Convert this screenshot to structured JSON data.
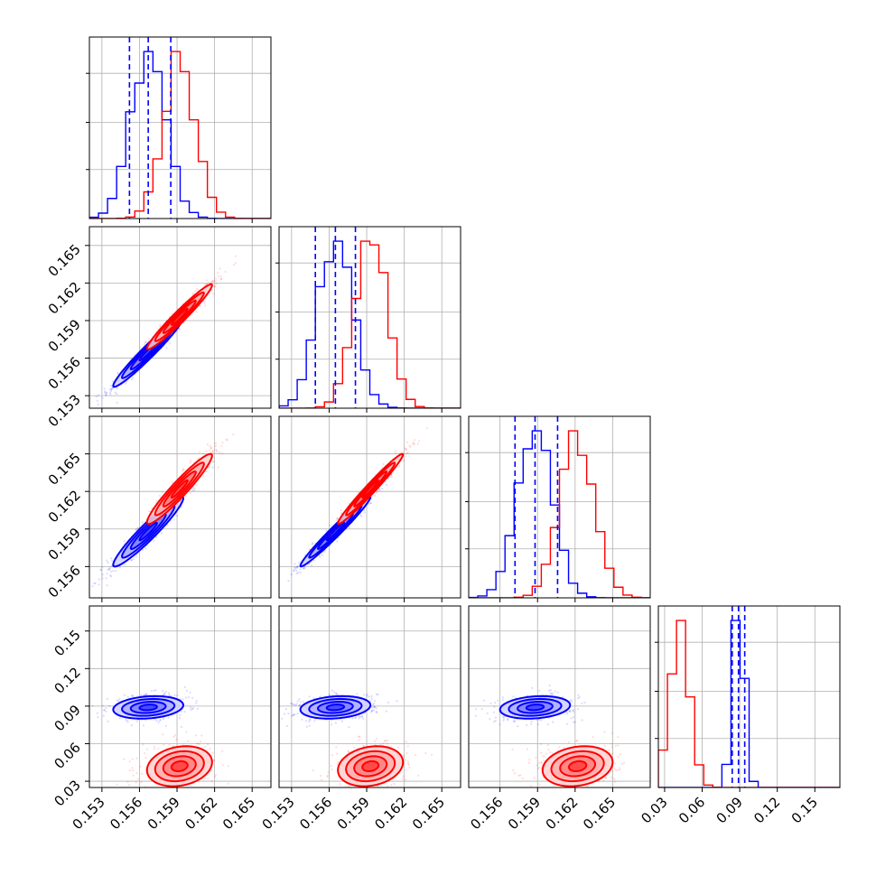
{
  "chart_data": {
    "type": "corner",
    "grid": true,
    "colors": {
      "series_a": "#0000ff",
      "series_b": "#ff0000"
    },
    "variables": [
      {
        "range": [
          0.152,
          0.1665
        ],
        "ticks": [
          0.153,
          0.156,
          0.159,
          0.162,
          0.165
        ],
        "tick_labels": [
          "0.153",
          "0.156",
          "0.159",
          "0.162",
          "0.165"
        ]
      },
      {
        "range": [
          0.152,
          0.1665
        ],
        "ticks": [
          0.153,
          0.156,
          0.159,
          0.162,
          0.165
        ],
        "tick_labels": [
          "0.153",
          "0.156",
          "0.159",
          "0.162",
          "0.165"
        ]
      },
      {
        "range": [
          0.1535,
          0.168
        ],
        "ticks": [
          0.156,
          0.159,
          0.162,
          0.165
        ],
        "tick_labels": [
          "0.156",
          "0.159",
          "0.162",
          "0.165"
        ]
      },
      {
        "range": [
          0.025,
          0.17
        ],
        "ticks": [
          0.03,
          0.06,
          0.09,
          0.12,
          0.15
        ],
        "tick_labels": [
          "0.03",
          "0.06",
          "0.09",
          "0.12",
          "0.15"
        ]
      }
    ],
    "series": [
      {
        "color": "#0000ff",
        "means": [
          0.1567,
          0.1565,
          0.1588,
          0.089
        ],
        "sds": [
          0.0014,
          0.0014,
          0.0014,
          0.0045
        ],
        "quantiles": [
          [
            0.1552,
            0.1567,
            0.1585
          ],
          [
            0.1549,
            0.1565,
            0.1581
          ],
          [
            0.1572,
            0.1588,
            0.1606
          ],
          [
            0.084,
            0.089,
            0.094
          ]
        ]
      },
      {
        "color": "#ff0000",
        "means": [
          0.1592,
          0.1593,
          0.1622,
          0.042
        ],
        "sds": [
          0.0013,
          0.0013,
          0.0014,
          0.008
        ],
        "quantiles": []
      }
    ],
    "correlations": {
      "1-0": 0.97,
      "2-0": 0.95,
      "2-1": 0.98,
      "3-0": 0.2,
      "3-1": 0.2,
      "3-2": 0.2
    }
  }
}
